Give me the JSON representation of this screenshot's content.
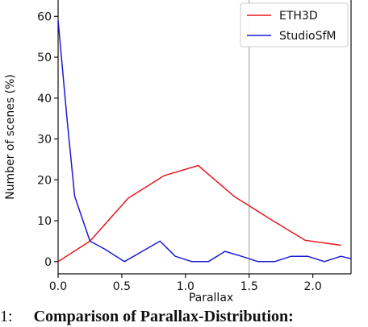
{
  "chart_data": {
    "type": "line",
    "title": "",
    "xlabel": "Parallax",
    "ylabel": "Number of scenes (%)",
    "xlim": [
      0,
      2.3
    ],
    "ylim": [
      -3,
      64
    ],
    "xticks": [
      0.0,
      0.5,
      1.0,
      1.5,
      2.0
    ],
    "xtick_labels": [
      "0.0",
      "0.5",
      "1.0",
      "1.5",
      "2.0"
    ],
    "yticks": [
      0,
      10,
      20,
      30,
      40,
      50,
      60
    ],
    "ytick_labels": [
      "0",
      "10",
      "20",
      "30",
      "40",
      "50",
      "60"
    ],
    "vertical_line_x": 1.5,
    "legend": "top-right",
    "grid": false,
    "series": [
      {
        "name": "ETH3D",
        "color": "#e8181f",
        "x": [
          0.0,
          0.25,
          0.55,
          0.83,
          1.1,
          1.38,
          1.66,
          1.94,
          2.22
        ],
        "y": [
          0,
          5,
          15.5,
          21,
          23.5,
          16,
          10.5,
          5.2,
          4
        ]
      },
      {
        "name": "StudioSfM",
        "color": "#1a1ad6",
        "x": [
          0.0,
          0.07,
          0.13,
          0.25,
          0.37,
          0.52,
          0.66,
          0.8,
          0.92,
          1.05,
          1.18,
          1.31,
          1.44,
          1.57,
          1.7,
          1.83,
          1.96,
          2.09,
          2.22,
          2.3
        ],
        "y": [
          59,
          35,
          16,
          5,
          3,
          0,
          2.5,
          5,
          1.3,
          0,
          0,
          2.5,
          1.3,
          0,
          0,
          1.3,
          1.3,
          0,
          1.3,
          0.7
        ]
      }
    ]
  },
  "caption": {
    "prefix": "1:",
    "text": "Comparison of Parallax-Distribution:"
  }
}
